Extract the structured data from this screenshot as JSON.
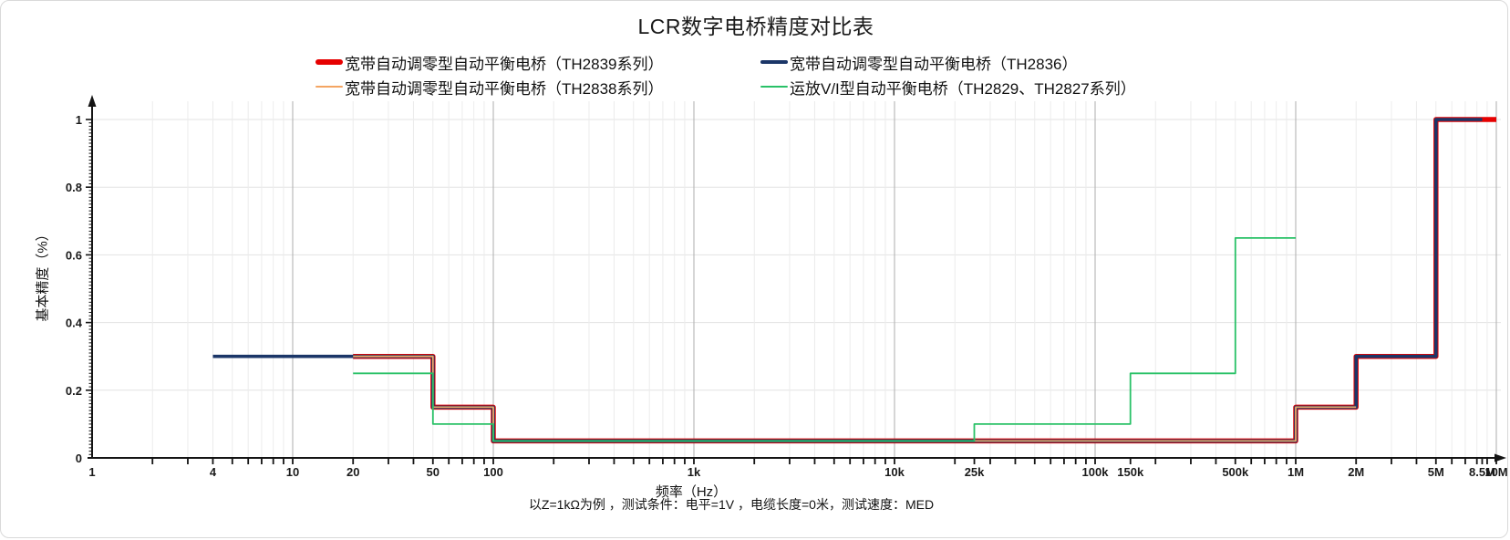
{
  "title": "LCR数字电桥精度对比表",
  "caption": "以Z=1kΩ为例 ，测试条件：电平=1V ，电缆长度=0米，测试速度：MED",
  "colors": {
    "axis": "#141414",
    "grid_minor": "#ececec",
    "grid_major": "#adadad",
    "tick_label": "#1a1a1a"
  },
  "chart_data": {
    "type": "line",
    "subtype": "step",
    "title": "LCR数字电桥精度对比表",
    "xlabel": "频率（Hz）",
    "ylabel": "基本精度（%）",
    "x_scale": "log",
    "x_range": [
      1,
      10000000
    ],
    "y_range": [
      0,
      1
    ],
    "grid": "on",
    "legend_position": "top-center",
    "x_ticks": [
      {
        "f": 1,
        "label": "1"
      },
      {
        "f": 4,
        "label": "4"
      },
      {
        "f": 10,
        "label": "10"
      },
      {
        "f": 20,
        "label": "20"
      },
      {
        "f": 50,
        "label": "50"
      },
      {
        "f": 100,
        "label": "100"
      },
      {
        "f": 1000,
        "label": "1k"
      },
      {
        "f": 10000,
        "label": "10k"
      },
      {
        "f": 25000,
        "label": "25k"
      },
      {
        "f": 100000,
        "label": "100k"
      },
      {
        "f": 150000,
        "label": "150k"
      },
      {
        "f": 500000,
        "label": "500k"
      },
      {
        "f": 1000000,
        "label": "1M"
      },
      {
        "f": 2000000,
        "label": "2M"
      },
      {
        "f": 5000000,
        "label": "5M"
      },
      {
        "f": 8500000,
        "label": "8.5M"
      },
      {
        "f": 10000000,
        "label": "10M"
      }
    ],
    "y_ticks": [
      {
        "v": 0,
        "label": "0"
      },
      {
        "v": 0.2,
        "label": "0.2"
      },
      {
        "v": 0.4,
        "label": "0.4"
      },
      {
        "v": 0.6,
        "label": "0.6"
      },
      {
        "v": 0.8,
        "label": "0.8"
      },
      {
        "v": 1,
        "label": "1"
      }
    ],
    "series": [
      {
        "id": "th2839",
        "name": "宽带自动调零型自动平衡电桥（TH2839系列）",
        "color": "#e60000",
        "width": 5.5,
        "points": [
          [
            20,
            0.3
          ],
          [
            50,
            0.3
          ],
          [
            50,
            0.15
          ],
          [
            100,
            0.15
          ],
          [
            100,
            0.05
          ],
          [
            1000000,
            0.05
          ],
          [
            1000000,
            0.15
          ],
          [
            2000000,
            0.15
          ],
          [
            2000000,
            0.3
          ],
          [
            5000000,
            0.3
          ],
          [
            5000000,
            1.0
          ],
          [
            10000000,
            1.0
          ]
        ]
      },
      {
        "id": "th2836",
        "name": "宽带自动调零型自动平衡电桥（TH2836）",
        "color": "#1b3668",
        "width": 3.6,
        "points": [
          [
            4,
            0.3
          ],
          [
            50,
            0.3
          ],
          [
            50,
            0.15
          ],
          [
            100,
            0.15
          ],
          [
            100,
            0.05
          ],
          [
            1000000,
            0.05
          ],
          [
            1000000,
            0.15
          ],
          [
            2000000,
            0.15
          ],
          [
            2000000,
            0.3
          ],
          [
            5000000,
            0.3
          ],
          [
            5000000,
            1.0
          ],
          [
            8500000,
            1.0
          ]
        ]
      },
      {
        "id": "th2838",
        "name": "宽带自动调零型自动平衡电桥（TH2838系列）",
        "color": "#f4a562",
        "width": 1.8,
        "points": [
          [
            20,
            0.3
          ],
          [
            50,
            0.3
          ],
          [
            50,
            0.15
          ],
          [
            100,
            0.15
          ],
          [
            100,
            0.05
          ],
          [
            1000000,
            0.05
          ],
          [
            1000000,
            0.15
          ],
          [
            2000000,
            0.15
          ]
        ]
      },
      {
        "id": "th2829_th2827",
        "name": "运放V/I型自动平衡电桥（TH2829、TH2827系列）",
        "color": "#29c167",
        "width": 1.8,
        "points": [
          [
            20,
            0.25
          ],
          [
            50,
            0.25
          ],
          [
            50,
            0.1
          ],
          [
            100,
            0.1
          ],
          [
            100,
            0.05
          ],
          [
            25000,
            0.05
          ],
          [
            25000,
            0.1
          ],
          [
            150000,
            0.1
          ],
          [
            150000,
            0.25
          ],
          [
            500000,
            0.25
          ],
          [
            500000,
            0.65
          ],
          [
            1000000,
            0.65
          ]
        ]
      }
    ]
  }
}
